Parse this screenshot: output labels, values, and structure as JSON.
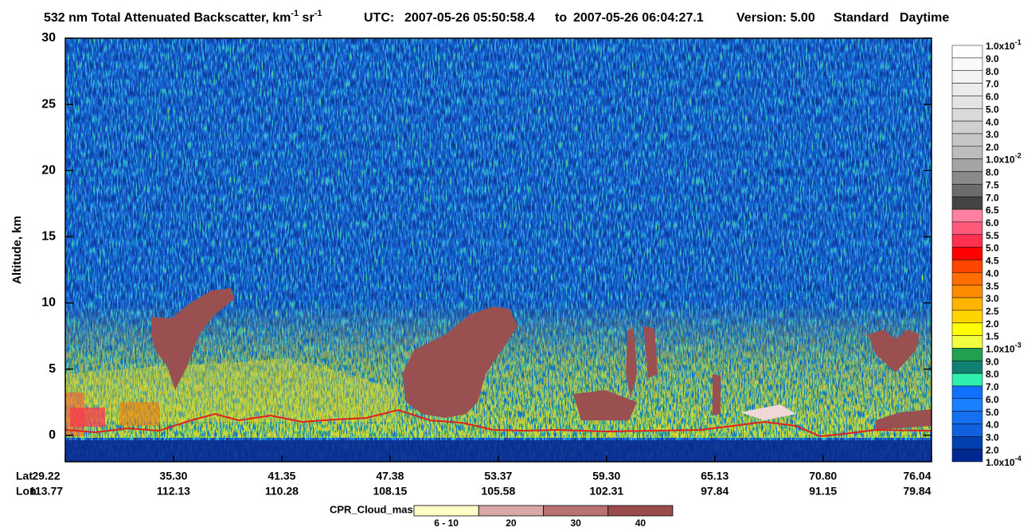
{
  "chart_data": {
    "type": "curtain",
    "title_parts": [
      {
        "text": "532 nm Total Attenuated Backscatter, km"
      },
      {
        "sup": "-1"
      },
      {
        "text": " sr"
      },
      {
        "sup": "-1"
      }
    ],
    "utc": "UTC:",
    "start_time": "2007-05-26 05:50:58.4",
    "to": "to",
    "end_time": "2007-05-26 06:04:27.1",
    "version": "Version: 5.00",
    "product": "Standard",
    "daynight": "Daytime",
    "y_label": "Altitude, km",
    "ylim": [
      -2,
      30
    ],
    "yticks": [
      0,
      5,
      10,
      15,
      20,
      25,
      30
    ],
    "x_rows": [
      "Lat",
      "Lon"
    ],
    "lat": [
      "29.22",
      "35.30",
      "41.35",
      "47.38",
      "53.37",
      "59.30",
      "65.13",
      "70.80",
      "76.04"
    ],
    "lon": [
      "113.77",
      "112.13",
      "110.28",
      "108.15",
      "105.58",
      "102.31",
      "97.84",
      "91.15",
      "79.84"
    ],
    "colorbar": {
      "labels": [
        {
          "text": "1.0x10",
          "sup": "-1"
        },
        "9.0",
        "8.0",
        "7.0",
        "6.0",
        "5.0",
        "4.0",
        "3.0",
        "2.0",
        {
          "text": "1.0x10",
          "sup": "-2"
        },
        "8.0",
        "7.5",
        "7.0",
        "6.5",
        "6.0",
        "5.5",
        "5.0",
        "4.5",
        "4.0",
        "3.5",
        "3.0",
        "2.5",
        "2.0",
        "1.5",
        {
          "text": "1.0x10",
          "sup": "-3"
        },
        "9.0",
        "8.0",
        "7.0",
        "6.0",
        "5.0",
        "4.0",
        "3.0",
        "2.0",
        {
          "text": "1.0x10",
          "sup": "-4"
        }
      ],
      "colors": [
        "#ffffff",
        "#fafafa",
        "#f3f3f3",
        "#ececec",
        "#e4e4e4",
        "#dadada",
        "#d0d0d0",
        "#c6c6c6",
        "#bcbcbc",
        "#a4a4a4",
        "#8a8a8a",
        "#6c6c6c",
        "#444444",
        "#ff80a0",
        "#ff5a7a",
        "#ff3050",
        "#ff0000",
        "#ff4400",
        "#ff6c00",
        "#ff8c00",
        "#ffb400",
        "#ffd400",
        "#ffff00",
        "#f0ff40",
        "#20a050",
        "#108070",
        "#30f0b0",
        "#1070ff",
        "#1a80ff",
        "#1470f0",
        "#1060e0",
        "#0040b0",
        "#002890"
      ]
    },
    "cpr_legend": {
      "title": "CPR_Cloud_mask",
      "labels": [
        "6 - 10",
        "20",
        "30",
        "40"
      ],
      "colors": [
        "#ffffc8",
        "#d8a8a8",
        "#b87272",
        "#9a4c4c"
      ]
    }
  }
}
